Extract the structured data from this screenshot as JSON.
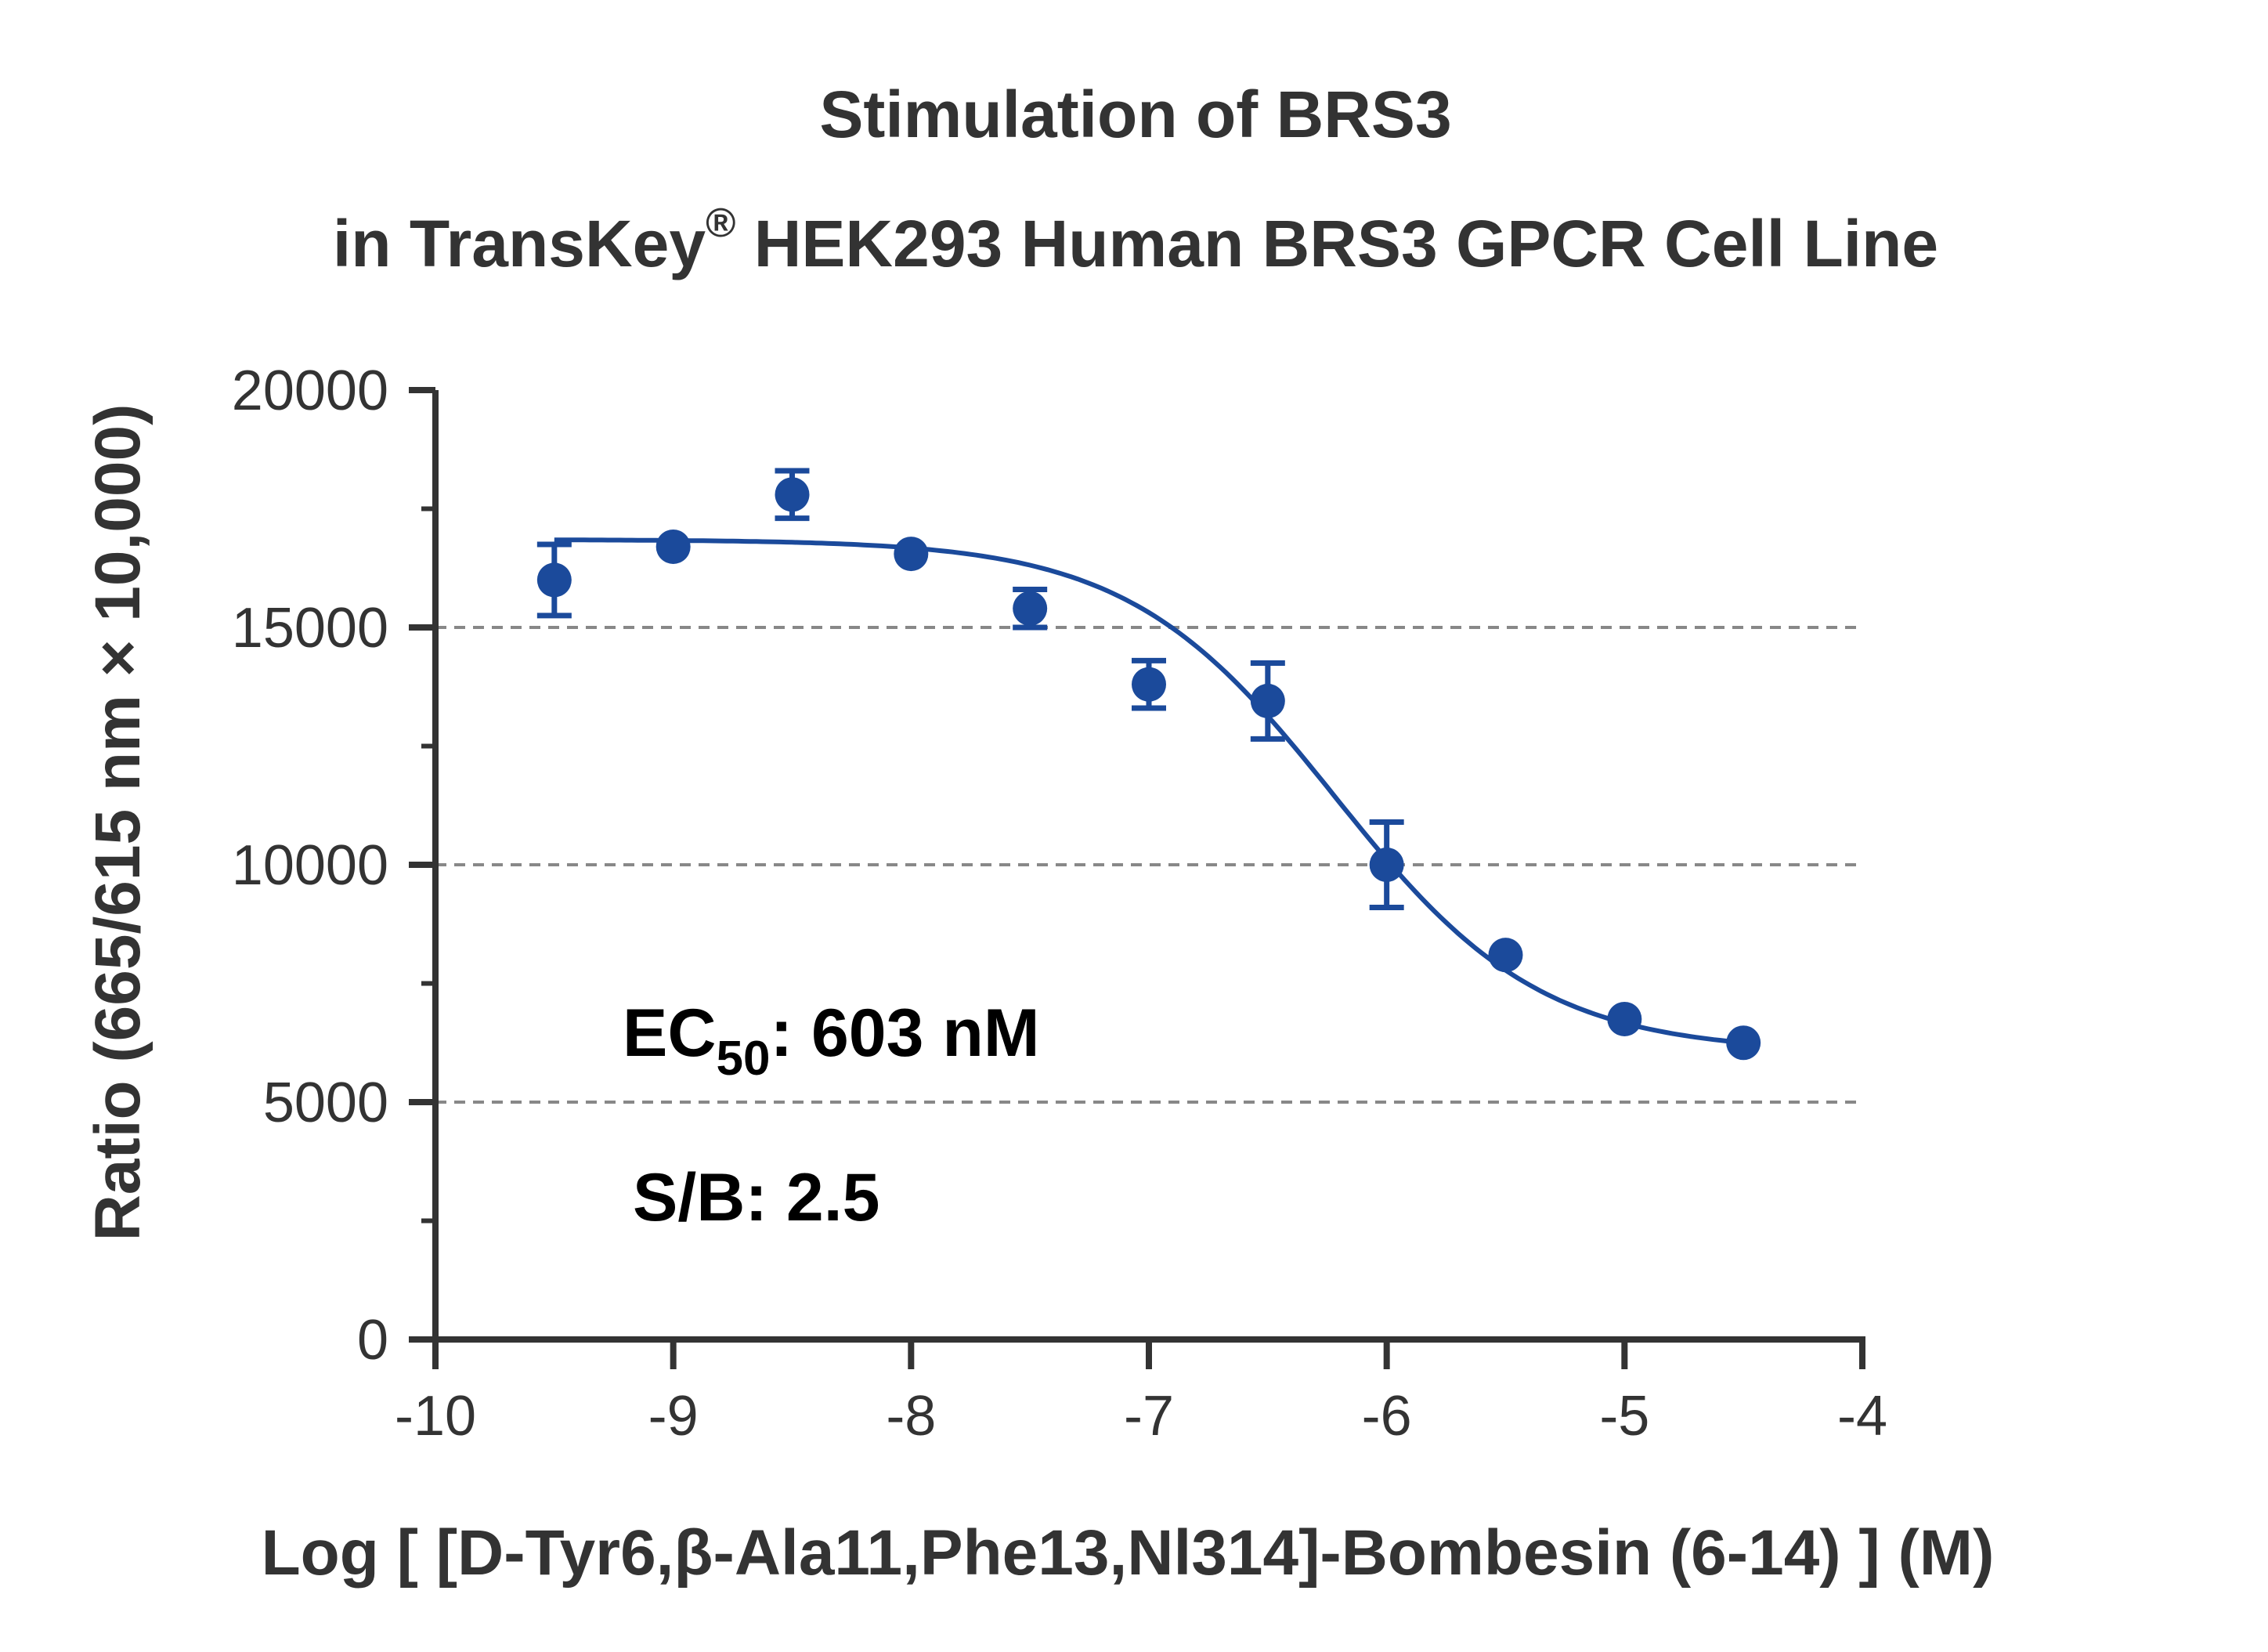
{
  "chart_data": {
    "type": "scatter",
    "title_line1": "Stimulation of  BRS3",
    "title_line2_prefix": "in TransKey",
    "title_registered_mark": "®",
    "title_line2_suffix": " HEK293 Human BRS3 GPCR Cell Line",
    "xlabel": "Log [ [D-Tyr6,β-Ala11,Phe13,Nl314]-Bombesin (6-14) ]  (M)",
    "ylabel": "Ratio (665/615 nm × 10,000)",
    "xlim": [
      -10,
      -4
    ],
    "ylim": [
      0,
      20000
    ],
    "x_ticks": [
      -10,
      -9,
      -8,
      -7,
      -6,
      -5,
      -4
    ],
    "x_tick_labels": [
      "-10",
      "-9",
      "-8",
      "-7",
      "-6",
      "-5",
      "-4"
    ],
    "y_ticks": [
      0,
      5000,
      10000,
      15000,
      20000
    ],
    "y_tick_labels": [
      "0",
      "5000",
      "10000",
      "15000",
      "20000"
    ],
    "y_minor_ticks": [
      2500,
      7500,
      12500,
      17500
    ],
    "grid": "horizontal dashed at 5000, 10000, 15000",
    "color": "#1b4a9b",
    "series": [
      {
        "x": [
          -9.5,
          -9.0,
          -8.5,
          -8.0,
          -7.5,
          -7.0,
          -6.5,
          -6.0,
          -5.5,
          -5.0,
          -4.5
        ],
        "y": [
          16000,
          16700,
          17800,
          16550,
          15400,
          13800,
          13450,
          10000,
          8100,
          6750,
          6250
        ],
        "error": [
          750,
          0,
          500,
          0,
          400,
          500,
          800,
          900,
          0,
          0,
          0
        ]
      }
    ],
    "fit_curve": {
      "model": "four-parameter logistic",
      "top": 16850,
      "bottom": 6050,
      "log_ec50": -6.22,
      "x_range": [
        -9.5,
        -4.5
      ]
    },
    "annotations": {
      "ec50_label": "EC",
      "ec50_subscript": "50",
      "ec50_value": ": 603 nM",
      "sb": "S/B: 2.5"
    }
  }
}
